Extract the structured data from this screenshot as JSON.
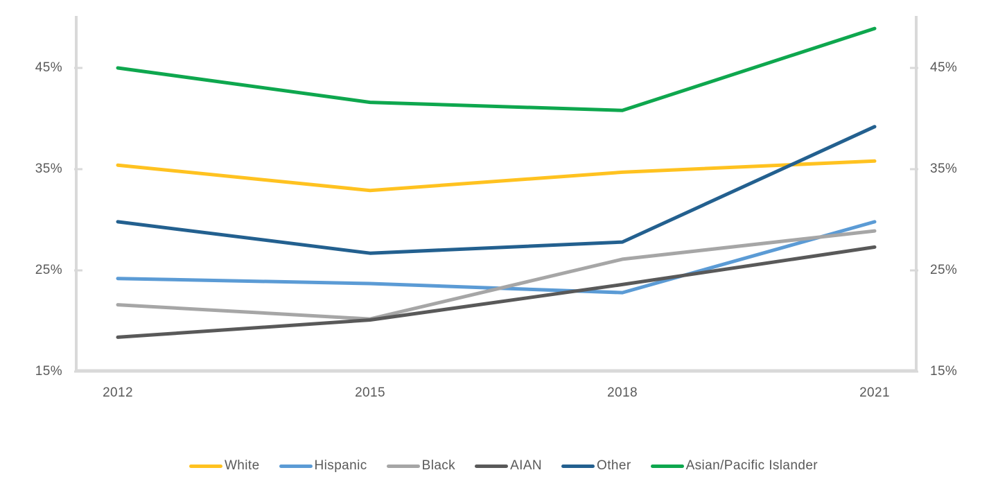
{
  "chart_data": {
    "type": "line",
    "title": "",
    "xlabel": "",
    "ylabel": "",
    "x": [
      2012,
      2015,
      2018,
      2021
    ],
    "x_labels": [
      "2012",
      "2015",
      "2018",
      "2021"
    ],
    "y_ticks": [
      45,
      35,
      25,
      15
    ],
    "y_tick_labels": [
      "45%",
      "35%",
      "25%",
      "15%"
    ],
    "ylim": [
      15,
      50.5
    ],
    "grid": false,
    "dual_y_axis": true,
    "legend_position": "bottom",
    "axis_color": "#D9D9D9",
    "label_color": "#595959",
    "series": [
      {
        "name": "White",
        "color": "#FFC220",
        "values": [
          35.4,
          32.9,
          34.7,
          35.8
        ]
      },
      {
        "name": "Hispanic",
        "color": "#5B9BD5",
        "values": [
          24.2,
          23.7,
          22.8,
          29.8
        ]
      },
      {
        "name": "Black",
        "color": "#A6A6A6",
        "values": [
          21.6,
          20.2,
          26.1,
          28.9
        ]
      },
      {
        "name": "AIAN",
        "color": "#595959",
        "values": [
          18.4,
          20.1,
          23.6,
          27.3
        ]
      },
      {
        "name": "Other",
        "color": "#23608F",
        "values": [
          29.8,
          26.7,
          27.8,
          39.2
        ]
      },
      {
        "name": "Asian/Pacific Islander",
        "color": "#0EA74E",
        "values": [
          45.0,
          41.6,
          40.8,
          48.9
        ]
      }
    ]
  }
}
